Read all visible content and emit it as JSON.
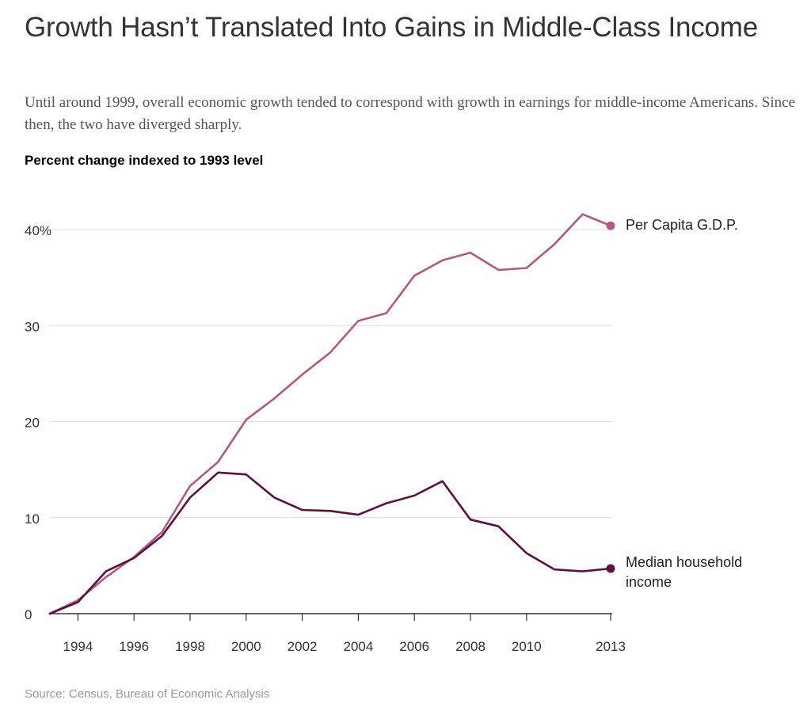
{
  "header": {
    "title": "Growth Hasn’t Translated Into Gains in Middle-Class Income",
    "subtitle": "Until around 1999, overall economic growth tended to correspond with growth in earnings for middle-income Americans. Since then, the two have diverged sharply.",
    "chart_label": "Percent change indexed to 1993 level"
  },
  "footer": {
    "source": "Source: Census, Bureau of Economic Analysis"
  },
  "colors": {
    "gdp": "#b05a84",
    "income": "#5e1043",
    "grid": "#dddddd",
    "axis": "#333333",
    "text": "#333333"
  },
  "chart_data": {
    "type": "line",
    "title": "Growth Hasn’t Translated Into Gains in Middle-Class Income",
    "ylabel": "Percent change indexed to 1993 level",
    "xlabel": "",
    "xlim": [
      1993,
      2013
    ],
    "ylim": [
      0,
      40
    ],
    "grid": true,
    "y_ticks": [
      {
        "value": 0,
        "label": "0"
      },
      {
        "value": 10,
        "label": "10"
      },
      {
        "value": 20,
        "label": "20"
      },
      {
        "value": 30,
        "label": "30"
      },
      {
        "value": 40,
        "label": "40%"
      }
    ],
    "x_ticks": [
      {
        "value": 1994,
        "label": "1994"
      },
      {
        "value": 1996,
        "label": "1996"
      },
      {
        "value": 1998,
        "label": "1998"
      },
      {
        "value": 2000,
        "label": "2000"
      },
      {
        "value": 2002,
        "label": "2002"
      },
      {
        "value": 2004,
        "label": "2004"
      },
      {
        "value": 2006,
        "label": "2006"
      },
      {
        "value": 2008,
        "label": "2008"
      },
      {
        "value": 2010,
        "label": "2010"
      },
      {
        "value": 2013,
        "label": "2013"
      }
    ],
    "x": [
      1993,
      1994,
      1995,
      1996,
      1997,
      1998,
      1999,
      2000,
      2001,
      2002,
      2003,
      2004,
      2005,
      2006,
      2007,
      2008,
      2009,
      2010,
      2011,
      2012,
      2013
    ],
    "series": [
      {
        "key": "gdp",
        "name": "Per Capita G.D.P.",
        "label_lines": [
          "Per Capita G.D.P."
        ],
        "values": [
          0,
          1.4,
          3.8,
          5.9,
          8.5,
          13.3,
          15.8,
          20.2,
          22.4,
          24.9,
          27.2,
          30.5,
          31.3,
          35.2,
          36.8,
          37.6,
          35.8,
          36.0,
          38.5,
          41.6,
          40.4
        ]
      },
      {
        "key": "income",
        "name": "Median household income",
        "label_lines": [
          "Median household",
          "income"
        ],
        "values": [
          0,
          1.2,
          4.4,
          5.8,
          8.1,
          12.1,
          14.7,
          14.5,
          12.1,
          10.8,
          10.7,
          10.3,
          11.5,
          12.3,
          13.8,
          9.8,
          9.1,
          6.3,
          4.6,
          4.4,
          4.7
        ]
      }
    ]
  }
}
